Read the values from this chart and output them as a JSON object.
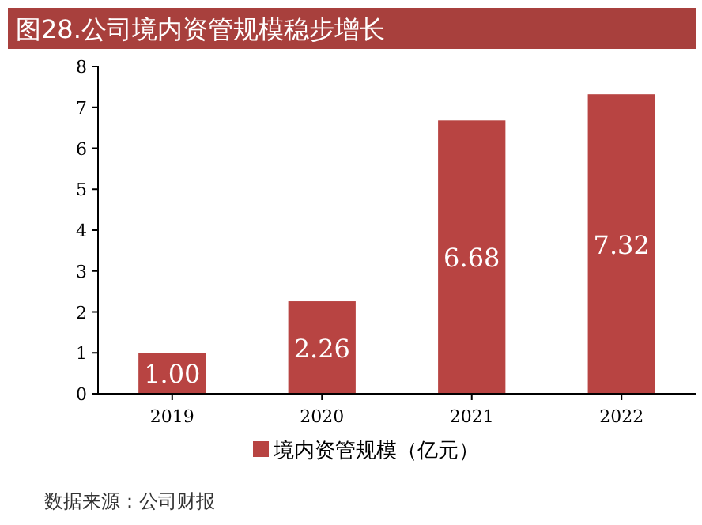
{
  "chart_data": {
    "type": "bar",
    "title": "图28.公司境内资管规模稳步增长",
    "categories": [
      "2019",
      "2020",
      "2021",
      "2022"
    ],
    "series": [
      {
        "name": "境内资管规模（亿元）",
        "color": "#b84442",
        "values": [
          1,
          2.26,
          6.68,
          7.32
        ]
      }
    ],
    "value_labels": [
      "1.00",
      "2.26",
      "6.68",
      "7.32"
    ],
    "ylim": [
      0,
      8
    ],
    "yticks": [
      0,
      1,
      2,
      3,
      4,
      5,
      6,
      7,
      8
    ],
    "grid": false,
    "legend": "bottom",
    "annotations": [
      "数据来源：公司财报"
    ]
  }
}
